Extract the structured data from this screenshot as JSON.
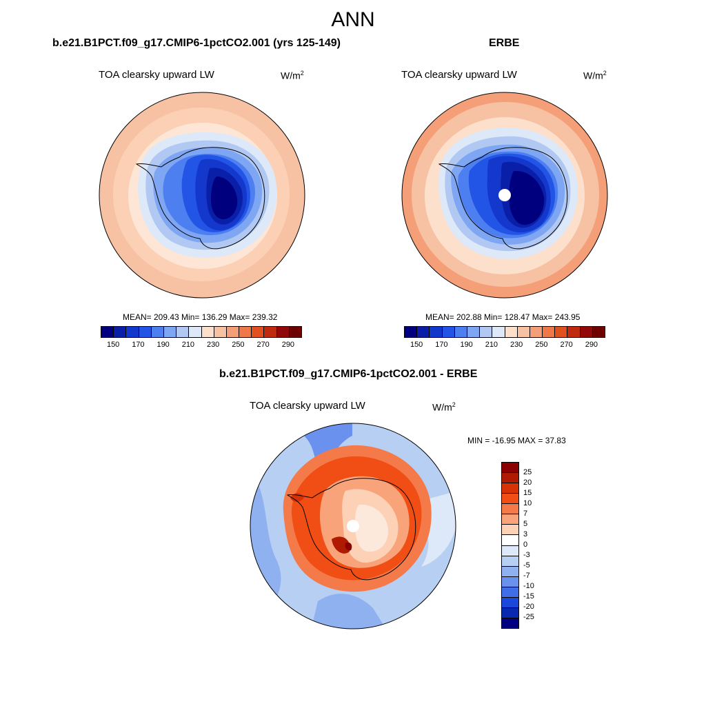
{
  "figure": {
    "title": "ANN"
  },
  "panels": {
    "model": {
      "title": "b.e21.B1PCT.f09_g17.CMIP6-1pctCO2.001 (yrs 125-149)",
      "variable": "TOA clearsky upward LW",
      "units_base": "W/m",
      "units_exp": "2",
      "stats": "MEAN= 209.43  Min= 136.29  Max= 239.32"
    },
    "obs": {
      "title": "ERBE",
      "variable": "TOA clearsky upward LW",
      "units_base": "W/m",
      "units_exp": "2",
      "stats": "MEAN= 202.88  Min= 128.47  Max= 243.95"
    },
    "diff": {
      "title": "b.e21.B1PCT.f09_g17.CMIP6-1pctCO2.001 - ERBE",
      "variable": "TOA clearsky upward LW",
      "units_base": "W/m",
      "units_exp": "2",
      "stats": "MIN = -16.95 MAX =  37.83"
    }
  },
  "colorbars": {
    "abs": {
      "colors": [
        "#00007f",
        "#0a1fa8",
        "#1538cc",
        "#2255e6",
        "#4d7ff0",
        "#7fa6f2",
        "#b0c8f2",
        "#dde8f8",
        "#fde0cc",
        "#f7c2a4",
        "#f59f78",
        "#ee7848",
        "#e0511d",
        "#c02a0e",
        "#900808",
        "#6e0000"
      ],
      "labels": [
        "150",
        "170",
        "190",
        "210",
        "230",
        "250",
        "270",
        "290"
      ]
    },
    "diff": {
      "colors": [
        "#8b0000",
        "#b01a02",
        "#d73206",
        "#f04e15",
        "#f57a4a",
        "#f9a37a",
        "#fcd1b5",
        "#ffffff",
        "#dde8f8",
        "#b8cff4",
        "#8fb1f0",
        "#6a91ee",
        "#3f6ee8",
        "#1a48dc",
        "#0828b0",
        "#000080"
      ],
      "labels": [
        "25",
        "20",
        "15",
        "10",
        "7",
        "5",
        "3",
        "0",
        "-3",
        "-5",
        "-7",
        "-10",
        "-15",
        "-20",
        "-25"
      ]
    }
  }
}
